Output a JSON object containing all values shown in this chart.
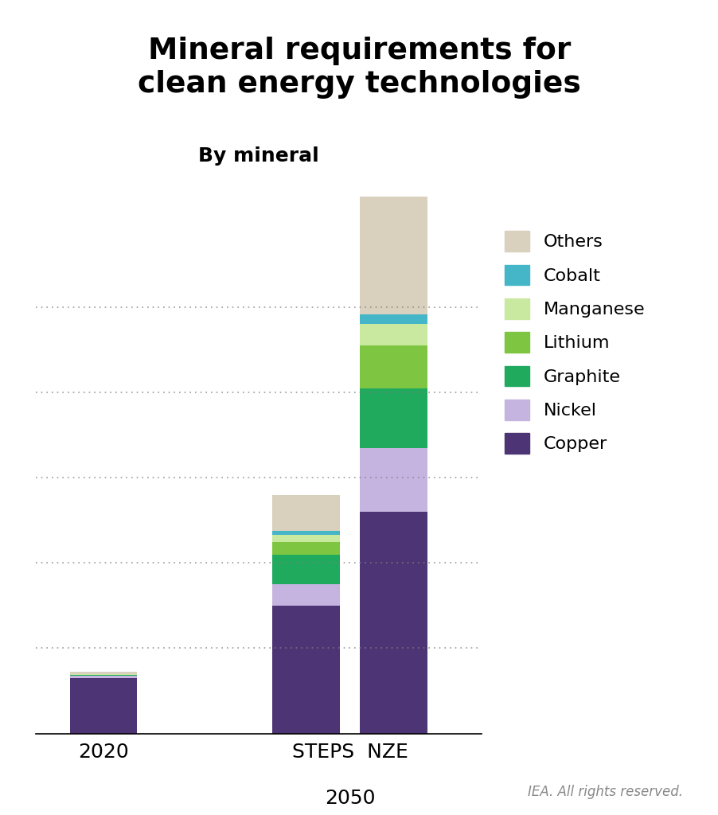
{
  "title": "Mineral requirements for\nclean energy technologies",
  "subtitle": "By mineral",
  "minerals": [
    "Copper",
    "Nickel",
    "Graphite",
    "Lithium",
    "Manganese",
    "Cobalt",
    "Others"
  ],
  "colors": {
    "Copper": "#4d3575",
    "Nickel": "#c5b3e0",
    "Graphite": "#1faa5e",
    "Lithium": "#7ec641",
    "Manganese": "#c9e8a0",
    "Cobalt": "#45b5c8",
    "Others": "#d9d0be"
  },
  "values": {
    "2020": {
      "Copper": 6.5,
      "Nickel": 0.25,
      "Graphite": 0.1,
      "Lithium": 0.05,
      "Manganese": 0.03,
      "Cobalt": 0.05,
      "Others": 0.25
    },
    "STEPS": {
      "Copper": 15.0,
      "Nickel": 2.5,
      "Graphite": 3.5,
      "Lithium": 1.5,
      "Manganese": 0.8,
      "Cobalt": 0.5,
      "Others": 4.2
    },
    "NZE": {
      "Copper": 26.0,
      "Nickel": 7.5,
      "Graphite": 7.0,
      "Lithium": 5.0,
      "Manganese": 2.5,
      "Cobalt": 1.2,
      "Others": 13.8
    }
  },
  "xtick_positions": [
    0.5,
    2.0,
    2.6
  ],
  "xtick_labels": [
    "2020",
    "STEPS",
    "NZE"
  ],
  "bar_width": 0.5,
  "ylim": [
    0,
    65
  ],
  "grid_vals": [
    10,
    20,
    30,
    40,
    50
  ],
  "footer": "IEA. All rights reserved.",
  "background_color": "#ffffff"
}
